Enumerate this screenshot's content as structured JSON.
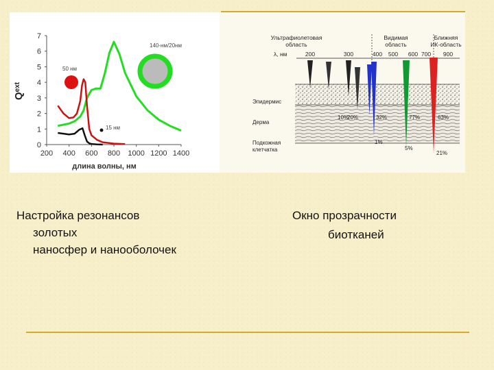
{
  "left_figure": {
    "axis_y_label": "Q",
    "axis_y_label_sub": "ext",
    "axis_x_label": "длина волны, нм",
    "annotation_nanoshell": "140-нм/20нм",
    "annotation_50nm": "50 нм",
    "annotation_15nm": "15 нм",
    "colors": {
      "green": "#22dd22",
      "red": "#cc1111",
      "black": "#111111",
      "axis": "#444444"
    }
  },
  "chart_data": {
    "type": "line",
    "xlabel": "длина волны, нм",
    "ylabel": "Qext",
    "xlim": [
      200,
      1400
    ],
    "ylim": [
      0,
      7
    ],
    "x_ticks": [
      200,
      400,
      600,
      800,
      1000,
      1200,
      1400
    ],
    "y_ticks": [
      0,
      1,
      2,
      3,
      4,
      5,
      6,
      7
    ],
    "series": [
      {
        "name": "140-нм/20нм",
        "color": "#22dd22",
        "x": [
          300,
          400,
          450,
          500,
          530,
          560,
          600,
          640,
          680,
          720,
          760,
          800,
          850,
          900,
          1000,
          1100,
          1200,
          1300,
          1400
        ],
        "y": [
          1.2,
          1.35,
          1.5,
          1.8,
          2.2,
          3.0,
          3.5,
          3.6,
          3.6,
          4.6,
          5.9,
          6.6,
          5.8,
          4.6,
          3.1,
          2.2,
          1.6,
          1.2,
          0.9
        ]
      },
      {
        "name": "50 нм",
        "color": "#cc1111",
        "x": [
          300,
          350,
          400,
          440,
          470,
          500,
          515,
          530,
          545,
          560,
          580,
          600,
          650,
          700,
          800,
          900
        ],
        "y": [
          2.5,
          2.0,
          1.7,
          1.75,
          2.0,
          2.8,
          3.8,
          4.2,
          4.0,
          2.5,
          1.0,
          0.6,
          0.3,
          0.15,
          0.06,
          0.03
        ]
      },
      {
        "name": "15 нм",
        "color": "#111111",
        "x": [
          300,
          350,
          400,
          450,
          490,
          520,
          540,
          560,
          580,
          600,
          650,
          700
        ],
        "y": [
          0.75,
          0.7,
          0.65,
          0.7,
          0.95,
          1.05,
          0.6,
          0.2,
          0.08,
          0.04,
          0.01,
          0.0
        ]
      }
    ]
  },
  "right_figure": {
    "region_uv": [
      "Ультрафиолетовая",
      "область"
    ],
    "region_visible": [
      "Видимая",
      "область"
    ],
    "region_nir": [
      "Ближняя",
      "ИК-область"
    ],
    "wavelength_label": "λ, нм",
    "wavelengths": [
      "200",
      "300",
      "400",
      "500",
      "600",
      "700",
      "900"
    ],
    "layers": [
      "Эпидермис",
      "Дерма",
      "Подкожная клетчатка"
    ],
    "percents": {
      "p10": "10%",
      "p20": "20%",
      "p32": "32%",
      "p77": "77%",
      "p63": "63%",
      "p1": "1%",
      "p5": "5%",
      "p21": "21%"
    },
    "colors": {
      "blue": "#2233cc",
      "green": "#119933",
      "red": "#dd2222",
      "dark": "#222222"
    }
  },
  "captions": {
    "left_line1": "Настройка резонансов",
    "left_line2": "золотых",
    "left_line3": "наносфер и нанооболочек",
    "right_line1": "Окно прозрачности",
    "right_line2": "биотканей"
  }
}
